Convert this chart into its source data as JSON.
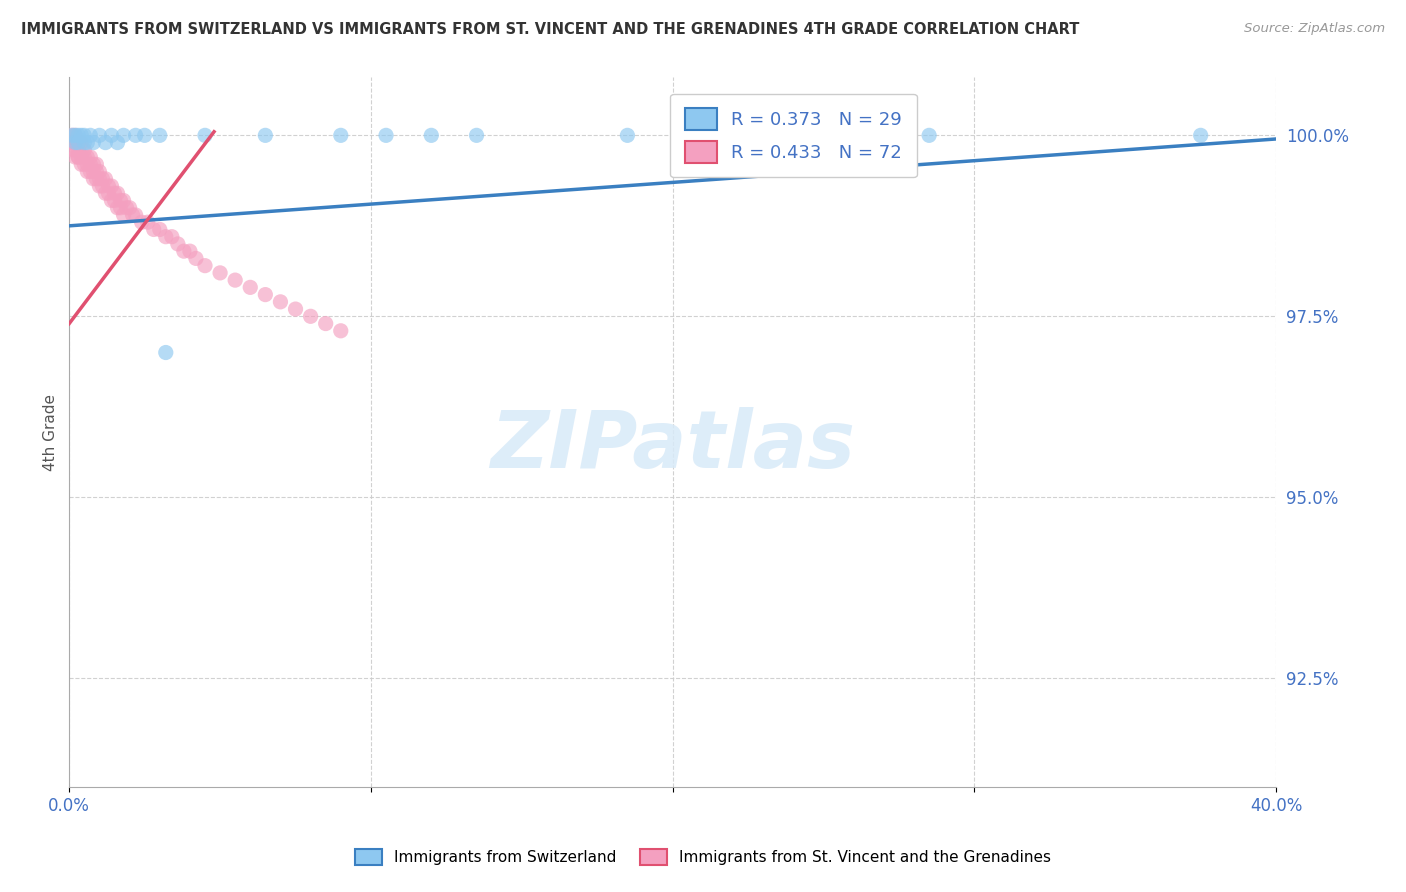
{
  "title": "IMMIGRANTS FROM SWITZERLAND VS IMMIGRANTS FROM ST. VINCENT AND THE GRENADINES 4TH GRADE CORRELATION CHART",
  "source": "Source: ZipAtlas.com",
  "ylabel": "4th Grade",
  "xlim": [
    0.0,
    0.4
  ],
  "ylim": [
    0.91,
    1.008
  ],
  "yticks": [
    0.925,
    0.95,
    0.975,
    1.0
  ],
  "ytick_labels": [
    "92.5%",
    "95.0%",
    "97.5%",
    "100.0%"
  ],
  "blue_color": "#8EC8F0",
  "pink_color": "#F4A0C0",
  "blue_line_color": "#3A7FC1",
  "pink_line_color": "#E05070",
  "legend_blue_label": "R = 0.373   N = 29",
  "legend_pink_label": "R = 0.433   N = 72",
  "swiss_legend": "Immigrants from Switzerland",
  "svg_legend": "Immigrants from St. Vincent and the Grenadines",
  "watermark": "ZIPatlas",
  "background": "#FFFFFF",
  "swiss_x": [
    0.001,
    0.002,
    0.002,
    0.003,
    0.003,
    0.004,
    0.005,
    0.005,
    0.006,
    0.007,
    0.008,
    0.01,
    0.012,
    0.014,
    0.016,
    0.018,
    0.022,
    0.025,
    0.03,
    0.032,
    0.045,
    0.065,
    0.09,
    0.105,
    0.12,
    0.135,
    0.185,
    0.285,
    0.375
  ],
  "swiss_y": [
    1.0,
    1.0,
    0.999,
    1.0,
    0.999,
    1.0,
    0.999,
    1.0,
    0.999,
    1.0,
    0.999,
    1.0,
    0.999,
    1.0,
    0.999,
    1.0,
    1.0,
    1.0,
    1.0,
    0.97,
    1.0,
    1.0,
    1.0,
    1.0,
    1.0,
    1.0,
    1.0,
    1.0,
    1.0
  ],
  "svgc_x": [
    0.001,
    0.001,
    0.002,
    0.002,
    0.002,
    0.003,
    0.003,
    0.003,
    0.004,
    0.004,
    0.005,
    0.005,
    0.006,
    0.006,
    0.007,
    0.007,
    0.008,
    0.008,
    0.009,
    0.009,
    0.01,
    0.01,
    0.011,
    0.012,
    0.013,
    0.014,
    0.015,
    0.016,
    0.017,
    0.018,
    0.019,
    0.02,
    0.021,
    0.022,
    0.024,
    0.026,
    0.028,
    0.03,
    0.032,
    0.034,
    0.036,
    0.038,
    0.04,
    0.042,
    0.045,
    0.05,
    0.055,
    0.06,
    0.065,
    0.07,
    0.075,
    0.08,
    0.085,
    0.09,
    0.001,
    0.002,
    0.003,
    0.004,
    0.005,
    0.006,
    0.007,
    0.008,
    0.009,
    0.01,
    0.011,
    0.012,
    0.013,
    0.014,
    0.015,
    0.016,
    0.017,
    0.018
  ],
  "svgc_y": [
    1.0,
    0.999,
    1.0,
    0.999,
    0.998,
    0.999,
    0.998,
    0.997,
    0.999,
    0.997,
    0.998,
    0.997,
    0.997,
    0.996,
    0.997,
    0.996,
    0.996,
    0.995,
    0.996,
    0.995,
    0.995,
    0.994,
    0.994,
    0.994,
    0.993,
    0.993,
    0.992,
    0.992,
    0.991,
    0.991,
    0.99,
    0.99,
    0.989,
    0.989,
    0.988,
    0.988,
    0.987,
    0.987,
    0.986,
    0.986,
    0.985,
    0.984,
    0.984,
    0.983,
    0.982,
    0.981,
    0.98,
    0.979,
    0.978,
    0.977,
    0.976,
    0.975,
    0.974,
    0.973,
    0.998,
    0.997,
    0.997,
    0.996,
    0.996,
    0.995,
    0.995,
    0.994,
    0.994,
    0.993,
    0.993,
    0.992,
    0.992,
    0.991,
    0.991,
    0.99,
    0.99,
    0.989
  ],
  "blue_line_x": [
    0.0,
    0.4
  ],
  "blue_line_y": [
    0.9875,
    0.9995
  ],
  "pink_line_x": [
    0.0,
    0.048
  ],
  "pink_line_y": [
    0.974,
    1.0005
  ]
}
